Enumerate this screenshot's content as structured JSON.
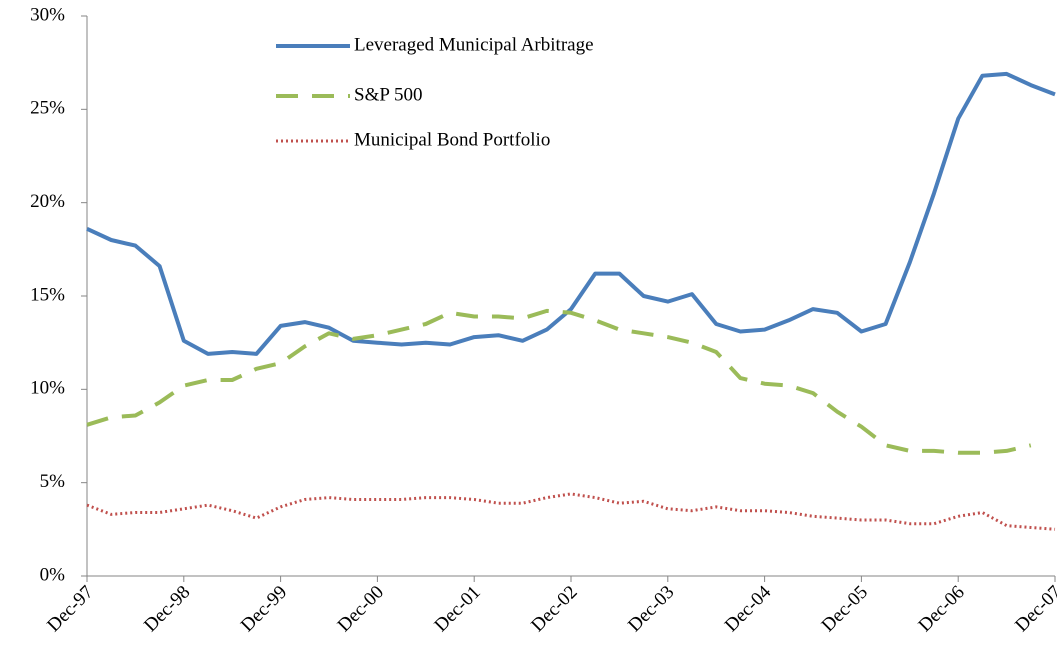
{
  "chart_data": {
    "type": "line",
    "categories": [
      "Dec-97",
      null,
      null,
      null,
      "Dec-98",
      null,
      null,
      null,
      "Dec-99",
      null,
      null,
      null,
      "Dec-00",
      null,
      null,
      null,
      "Dec-01",
      null,
      null,
      null,
      "Dec-02",
      null,
      null,
      null,
      "Dec-03",
      null,
      null,
      null,
      "Dec-04",
      null,
      null,
      null,
      "Dec-05",
      null,
      null,
      null,
      "Dec-06",
      null,
      null,
      null,
      "Dec-07"
    ],
    "series": [
      {
        "name": "Leveraged Municipal Arbitrage",
        "color": "#4a7ebb",
        "style": "solid",
        "values": [
          18.6,
          18.0,
          17.7,
          16.6,
          12.6,
          11.9,
          12.0,
          11.9,
          13.4,
          13.6,
          13.3,
          12.6,
          12.5,
          12.4,
          12.5,
          12.4,
          12.8,
          12.9,
          12.6,
          13.2,
          14.3,
          16.2,
          16.2,
          15.0,
          14.7,
          15.1,
          13.5,
          13.1,
          13.2,
          13.7,
          14.3,
          14.1,
          13.1,
          13.5,
          16.8,
          20.5,
          24.5,
          26.8,
          26.9,
          26.3,
          25.8
        ]
      },
      {
        "name": "S&P 500",
        "color": "#9bbb59",
        "style": "dashed",
        "values": [
          8.1,
          8.5,
          8.6,
          9.3,
          10.2,
          10.5,
          10.5,
          11.1,
          11.4,
          12.3,
          13.0,
          12.7,
          12.9,
          13.2,
          13.5,
          14.1,
          13.9,
          13.9,
          13.8,
          14.2,
          14.1,
          13.7,
          13.2,
          13.0,
          12.8,
          12.5,
          12.0,
          10.6,
          10.3,
          10.2,
          9.8,
          8.8,
          8.0,
          7.0,
          6.7,
          6.7,
          6.6,
          6.6,
          6.7,
          7.0,
          null
        ]
      },
      {
        "name": "Municipal Bond Portfolio",
        "color": "#c0504d",
        "style": "dotted",
        "values": [
          3.8,
          3.3,
          3.4,
          3.4,
          3.6,
          3.8,
          3.5,
          3.1,
          3.7,
          4.1,
          4.2,
          4.1,
          4.1,
          4.1,
          4.2,
          4.2,
          4.1,
          3.9,
          3.9,
          4.2,
          4.4,
          4.2,
          3.9,
          4.0,
          3.6,
          3.5,
          3.7,
          3.5,
          3.5,
          3.4,
          3.2,
          3.1,
          3.0,
          3.0,
          2.8,
          2.8,
          3.2,
          3.4,
          2.7,
          2.6,
          2.5
        ]
      }
    ],
    "ylim": [
      0,
      30
    ],
    "yticks": [
      {
        "value": 0,
        "label": "0%"
      },
      {
        "value": 5,
        "label": "5%"
      },
      {
        "value": 10,
        "label": "10%"
      },
      {
        "value": 15,
        "label": "15%"
      },
      {
        "value": 20,
        "label": "20%"
      },
      {
        "value": 25,
        "label": "25%"
      },
      {
        "value": 30,
        "label": "30%"
      }
    ],
    "legend": "top"
  }
}
